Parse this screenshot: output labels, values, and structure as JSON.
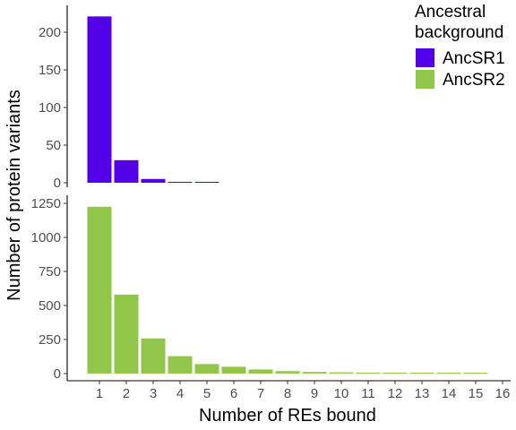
{
  "chart_data": {
    "type": "bar",
    "xlabel": "Number of REs bound",
    "ylabel": "Number of protein variants",
    "x_ticks": [
      "1",
      "2",
      "3",
      "4",
      "5",
      "6",
      "7",
      "8",
      "9",
      "10",
      "11",
      "12",
      "13",
      "14",
      "15",
      "16"
    ],
    "legend": {
      "title_line1": "Ancestral",
      "title_line2": "background",
      "placement": "top-right"
    },
    "panels": [
      {
        "series_name": "AncSR1",
        "color": "#5200e6",
        "ylim": [
          0,
          225
        ],
        "y_ticks": [
          0,
          50,
          100,
          150,
          200
        ],
        "x": [
          1,
          2,
          3,
          4,
          5
        ],
        "values": [
          221,
          30,
          5,
          1,
          1
        ]
      },
      {
        "series_name": "AncSR2",
        "color": "#92c64a",
        "ylim": [
          0,
          1260
        ],
        "y_ticks": [
          0,
          250,
          500,
          750,
          1000,
          1250
        ],
        "x": [
          1,
          2,
          3,
          4,
          5,
          6,
          7,
          8,
          9,
          10,
          11,
          12,
          13,
          14,
          15
        ],
        "values": [
          1225,
          580,
          258,
          128,
          70,
          50,
          30,
          18,
          12,
          9,
          7,
          5,
          3,
          2,
          1
        ]
      }
    ]
  }
}
